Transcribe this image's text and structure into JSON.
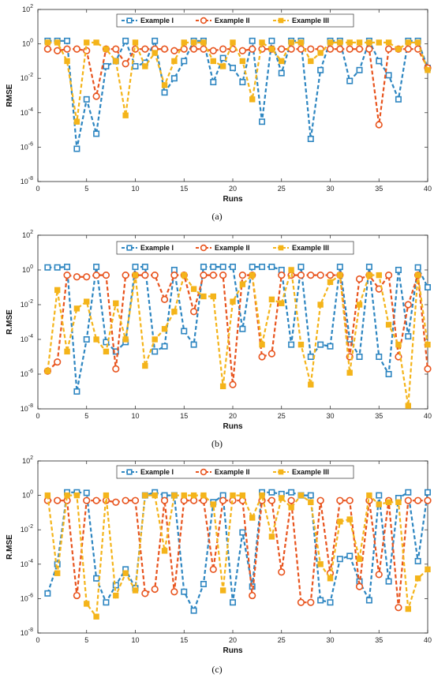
{
  "figure": {
    "colors": {
      "example1": "#2E86C1",
      "example2": "#E8541E",
      "example3": "#F4B41A"
    }
  },
  "chart_data": [
    {
      "type": "line",
      "caption": "(a)",
      "xlabel": "Runs",
      "ylabel": "RMSE",
      "xlim": [
        0,
        40
      ],
      "ylim": [
        1e-08,
        100
      ],
      "yscale": "log",
      "x_ticks": [
        "0",
        "5",
        "10",
        "15",
        "20",
        "25",
        "30",
        "35",
        "40"
      ],
      "y_ticks": [
        {
          "base": "10",
          "exp": "2"
        },
        {
          "base": "10",
          "exp": "0"
        },
        {
          "base": "10",
          "exp": "-2"
        },
        {
          "base": "10",
          "exp": "-4"
        },
        {
          "base": "10",
          "exp": "-6"
        },
        {
          "base": "10",
          "exp": "-8"
        }
      ],
      "legend_position": "top",
      "x": [
        1,
        2,
        3,
        4,
        5,
        6,
        7,
        8,
        9,
        10,
        11,
        12,
        13,
        14,
        15,
        16,
        17,
        18,
        19,
        20,
        21,
        22,
        23,
        24,
        25,
        26,
        27,
        28,
        29,
        30,
        31,
        32,
        33,
        34,
        35,
        36,
        37,
        38,
        39,
        40
      ],
      "series": [
        {
          "name": "Example I",
          "values": [
            1.5,
            1.5,
            1.5,
            8e-07,
            0.0006,
            6e-06,
            0.05,
            0.1,
            1.5,
            0.05,
            0.08,
            1.5,
            0.0015,
            0.01,
            0.1,
            1.5,
            1.5,
            0.006,
            0.15,
            0.04,
            0.006,
            1.5,
            3e-05,
            1.5,
            0.02,
            1.5,
            1.5,
            3e-06,
            0.03,
            1.5,
            1.5,
            0.007,
            0.03,
            1.5,
            0.1,
            0.015,
            0.0006,
            1.5,
            1.5,
            0.04
          ]
        },
        {
          "name": "Example II",
          "values": [
            0.5,
            0.4,
            0.5,
            0.5,
            0.4,
            0.0009,
            0.5,
            0.5,
            0.07,
            0.5,
            0.5,
            0.5,
            0.5,
            0.4,
            0.5,
            0.5,
            0.5,
            0.4,
            0.5,
            0.5,
            0.4,
            0.5,
            0.5,
            0.5,
            0.5,
            0.5,
            0.5,
            0.5,
            0.5,
            0.5,
            0.5,
            0.5,
            0.5,
            0.5,
            2e-05,
            0.5,
            0.5,
            0.5,
            0.5,
            0.04
          ]
        },
        {
          "name": "Example III",
          "values": [
            1.2,
            1.2,
            0.1,
            3e-05,
            1.2,
            1.2,
            0.5,
            0.1,
            7e-05,
            1.2,
            0.05,
            0.3,
            0.004,
            0.1,
            1.2,
            1.2,
            1.2,
            0.1,
            0.05,
            1.2,
            0.1,
            0.0006,
            1.2,
            0.5,
            0.1,
            1.2,
            1.2,
            0.1,
            0.3,
            1.2,
            1.2,
            1.2,
            1.2,
            1.2,
            1.2,
            1.2,
            0.5,
            1.2,
            1.2,
            0.03
          ]
        }
      ]
    },
    {
      "type": "line",
      "caption": "(b)",
      "xlabel": "Runs",
      "ylabel": "R.MSE",
      "xlim": [
        0,
        40
      ],
      "ylim": [
        1e-08,
        100
      ],
      "yscale": "log",
      "x_ticks": [
        "0",
        "5",
        "10",
        "15",
        "20",
        "25",
        "30",
        "35",
        "40"
      ],
      "y_ticks": [
        {
          "base": "10",
          "exp": "2"
        },
        {
          "base": "10",
          "exp": "0"
        },
        {
          "base": "10",
          "exp": "-2"
        },
        {
          "base": "10",
          "exp": "-4"
        },
        {
          "base": "10",
          "exp": "-6"
        },
        {
          "base": "10",
          "exp": "-8"
        }
      ],
      "legend_position": "top",
      "x": [
        1,
        2,
        3,
        4,
        5,
        6,
        7,
        8,
        9,
        10,
        11,
        12,
        13,
        14,
        15,
        16,
        17,
        18,
        19,
        20,
        21,
        22,
        23,
        24,
        25,
        26,
        27,
        28,
        29,
        30,
        31,
        32,
        33,
        34,
        35,
        36,
        37,
        38,
        39,
        40
      ],
      "series": [
        {
          "name": "Example I",
          "values": [
            1.4,
            1.4,
            1.5,
            1e-07,
            0.0001,
            1.5,
            7e-05,
            2e-05,
            7e-05,
            1.5,
            1.5,
            2e-05,
            4e-05,
            1,
            0.0003,
            5e-05,
            1.5,
            1.5,
            1.5,
            1.5,
            0.0004,
            1.5,
            1.5,
            1.5,
            1,
            5e-05,
            1.5,
            1e-05,
            5e-05,
            4e-05,
            1.5,
            0.0001,
            1e-05,
            1.5,
            1e-05,
            1e-06,
            1,
            0.00015,
            1.4,
            0.1
          ]
        },
        {
          "name": "Example II",
          "values": [
            1.5e-06,
            5e-06,
            0.5,
            0.4,
            0.4,
            0.5,
            0.5,
            2e-06,
            0.5,
            0.5,
            0.5,
            0.5,
            0.02,
            0.5,
            0.5,
            0.004,
            0.5,
            0.5,
            0.5,
            2.5e-07,
            0.5,
            0.5,
            1e-05,
            1.5e-05,
            0.5,
            0.5,
            0.5,
            0.5,
            0.5,
            0.5,
            0.5,
            1e-05,
            0.3,
            0.5,
            0.08,
            0.5,
            1e-05,
            0.01,
            0.5,
            2e-06
          ]
        },
        {
          "name": "Example III",
          "values": [
            1.5e-06,
            0.07,
            2e-05,
            0.006,
            0.015,
            0.0001,
            2e-05,
            0.012,
            0.0001,
            0.5,
            3e-06,
            0.0001,
            0.0004,
            0.004,
            0.5,
            0.08,
            0.03,
            0.03,
            2e-07,
            0.015,
            0.15,
            0.5,
            5e-05,
            0.02,
            0.012,
            1,
            5e-05,
            2.5e-07,
            0.01,
            0.2,
            0.5,
            1.2e-06,
            0.01,
            0.5,
            0.5,
            0.0007,
            5e-05,
            1.5e-08,
            0.5,
            5e-05
          ]
        }
      ]
    },
    {
      "type": "line",
      "caption": "(c)",
      "xlabel": "Runs",
      "ylabel": "R.MSE",
      "xlim": [
        0,
        40
      ],
      "ylim": [
        1e-08,
        100
      ],
      "yscale": "log",
      "x_ticks": [
        "0",
        "5",
        "10",
        "15",
        "20",
        "25",
        "30",
        "35",
        "40"
      ],
      "y_ticks": [
        {
          "base": "10",
          "exp": "2"
        },
        {
          "base": "10",
          "exp": "0"
        },
        {
          "base": "10",
          "exp": "-2"
        },
        {
          "base": "10",
          "exp": "-4"
        },
        {
          "base": "10",
          "exp": "-6"
        },
        {
          "base": "10",
          "exp": "-8"
        }
      ],
      "legend_position": "top",
      "x": [
        1,
        2,
        3,
        4,
        5,
        6,
        7,
        8,
        9,
        10,
        11,
        12,
        13,
        14,
        15,
        16,
        17,
        18,
        19,
        20,
        21,
        22,
        23,
        24,
        25,
        26,
        27,
        28,
        29,
        30,
        31,
        32,
        33,
        34,
        35,
        36,
        37,
        38,
        39,
        40
      ],
      "series": [
        {
          "name": "Example I",
          "values": [
            2e-06,
            0.0001,
            1.5,
            1.5,
            1.4,
            1.5e-05,
            6e-07,
            6e-06,
            5e-05,
            4e-06,
            1,
            1.5,
            1,
            1,
            2.5e-06,
            2e-07,
            7e-06,
            0.4,
            1,
            6e-07,
            0.007,
            5e-06,
            1.5,
            1.5,
            1.2,
            1.5,
            1,
            1,
            8e-07,
            6e-07,
            0.0002,
            0.0003,
            1e-05,
            8e-07,
            1,
            1e-05,
            0.7,
            1.5,
            0.00015,
            1.5
          ]
        },
        {
          "name": "Example II",
          "values": [
            0.5,
            0.5,
            0.5,
            1.5e-06,
            0.5,
            0.5,
            0.5,
            0.4,
            0.5,
            0.5,
            2e-06,
            3.5e-06,
            0.5,
            2.5e-06,
            0.5,
            0.5,
            0.5,
            5e-05,
            0.5,
            0.5,
            0.5,
            1.5e-06,
            0.5,
            0.5,
            3.5e-05,
            0.5,
            6e-07,
            6e-07,
            0.5,
            3e-05,
            0.5,
            0.5,
            5e-06,
            0.5,
            2.5e-05,
            0.5,
            3e-07,
            0.5,
            0.5,
            0.5
          ]
        },
        {
          "name": "Example III",
          "values": [
            1,
            3e-05,
            1,
            1,
            5e-07,
            9e-08,
            1,
            1.5e-06,
            3e-05,
            3e-06,
            1,
            1,
            0.0006,
            1,
            1,
            1,
            1,
            0.3,
            3e-06,
            1,
            1,
            0.05,
            1,
            0.004,
            0.7,
            0.2,
            1,
            0.4,
            0.0001,
            1.5e-05,
            0.03,
            0.04,
            0.0002,
            1,
            0.3,
            0.4,
            0.4,
            2.5e-07,
            1.5e-05,
            5e-05
          ]
        }
      ]
    }
  ]
}
